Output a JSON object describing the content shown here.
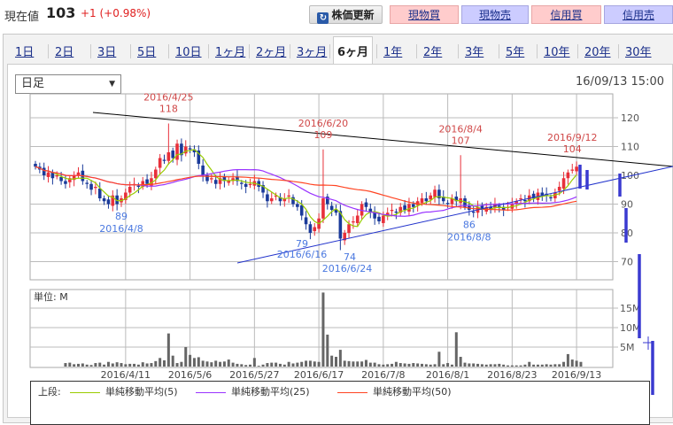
{
  "header": {
    "price_label": "現在値",
    "price": "103",
    "change": "+1 (+0.98%)",
    "refresh_label": "株価更新",
    "buttons": [
      {
        "label": "現物買",
        "kind": "buy"
      },
      {
        "label": "現物売",
        "kind": "sell"
      },
      {
        "label": "信用買",
        "kind": "buy"
      },
      {
        "label": "信用売",
        "kind": "sell"
      }
    ]
  },
  "tabs": [
    "1日",
    "2日",
    "3日",
    "5日",
    "10日",
    "1ヶ月",
    "2ヶ月",
    "3ヶ月",
    "6ヶ月",
    "1年",
    "2年",
    "3年",
    "5年",
    "10年",
    "20年",
    "30年"
  ],
  "active_tab": "6ヶ月",
  "period_select": {
    "value": "日足"
  },
  "timestamp": "16/09/13 15:00",
  "legend": {
    "upper_label": "上段:",
    "items": [
      {
        "label": "単純移動平均(5)",
        "color": "#99cc00"
      },
      {
        "label": "単純移動平均(25)",
        "color": "#9933ff"
      },
      {
        "label": "単純移動平均(50)",
        "color": "#ff4422"
      }
    ]
  },
  "chart_data": [
    {
      "type": "candlestick",
      "y_ticks": [
        70,
        80,
        90,
        100,
        110,
        120
      ],
      "x_tick_labels": [
        "2016/4/11",
        "2016/5/6",
        "2016/5/27",
        "2016/6/17",
        "2016/7/8",
        "2016/8/1",
        "2016/8/23",
        "2016/9/13"
      ],
      "x_tick_index": [
        21,
        36,
        51,
        66,
        81,
        96,
        111,
        126
      ],
      "close": [
        103,
        102,
        100,
        101,
        99,
        100,
        98,
        97,
        99,
        100,
        101,
        98,
        97,
        95,
        96,
        92,
        91,
        90,
        93,
        90,
        92,
        94,
        96,
        97,
        96,
        98,
        97,
        99,
        102,
        106,
        105,
        108,
        106,
        111,
        107,
        110,
        109,
        108,
        104,
        100,
        98,
        99,
        97,
        99,
        98,
        98,
        99,
        98,
        97,
        96,
        97,
        98,
        96,
        94,
        91,
        92,
        93,
        91,
        92,
        93,
        90,
        89,
        86,
        83,
        80,
        82,
        85,
        92,
        90,
        88,
        87,
        78,
        80,
        83,
        84,
        86,
        90,
        89,
        87,
        85,
        84,
        86,
        87,
        88,
        87,
        89,
        88,
        90,
        89,
        91,
        92,
        91,
        93,
        95,
        92,
        91,
        90,
        92,
        91,
        92,
        89,
        88,
        87,
        89,
        88,
        89,
        88,
        90,
        89,
        88,
        89,
        90,
        91,
        92,
        91,
        93,
        92,
        94,
        93,
        93,
        92,
        94,
        96,
        99,
        101,
        102,
        103
      ],
      "annotations": [
        {
          "kind": "high",
          "date": "2016/4/25",
          "value": 118,
          "index": 31
        },
        {
          "kind": "high",
          "date": "2016/6/20",
          "value": 109,
          "index": 67
        },
        {
          "kind": "high",
          "date": "2016/8/4",
          "value": 107,
          "index": 99
        },
        {
          "kind": "high",
          "date": "2016/9/12",
          "value": 104,
          "index": 125
        },
        {
          "kind": "low",
          "date": "2016/4/8",
          "value": 89,
          "index": 20
        },
        {
          "kind": "low",
          "date": "2016/6/16",
          "value": 79,
          "index": 65
        },
        {
          "kind": "low",
          "date": "2016/6/24",
          "value": 74,
          "index": 71
        },
        {
          "kind": "low",
          "date": "2016/8/8",
          "value": 86,
          "index": 101
        }
      ],
      "moving_averages": [
        5,
        25,
        50
      ]
    },
    {
      "type": "bar",
      "unit_label": "単位: M",
      "y_ticks": [
        "5M",
        "10M",
        "15M"
      ],
      "y_tick_values": [
        5,
        10,
        15
      ],
      "values": [
        0,
        0,
        0,
        0,
        0,
        0,
        0,
        0.9,
        1.0,
        0.6,
        0.7,
        0.8,
        0.5,
        0.4,
        0.9,
        1.0,
        0.5,
        1.2,
        0.8,
        1.1,
        0.9,
        0.6,
        0.7,
        0.7,
        0.5,
        1.1,
        0.8,
        0.9,
        1.4,
        2.2,
        1.6,
        8.5,
        2.8,
        0.9,
        1.2,
        5.0,
        3.0,
        2.2,
        2.4,
        1.5,
        1.3,
        1.1,
        1.5,
        1.2,
        1.3,
        1.8,
        1.0,
        0.7,
        0.6,
        0.4,
        0.5,
        2.2,
        0.2,
        0.5,
        0.9,
        1.0,
        1.0,
        0.7,
        0.5,
        1.2,
        0.8,
        1.0,
        1.2,
        1.5,
        1.5,
        1.3,
        1.2,
        19.0,
        8.2,
        2.8,
        2.5,
        4.3,
        1.5,
        1.4,
        1.3,
        1.3,
        1.3,
        1.7,
        1.0,
        1.0,
        0.6,
        0.5,
        0.6,
        0.7,
        1.2,
        0.9,
        0.8,
        0.7,
        0.9,
        0.8,
        0.7,
        0.6,
        0.5,
        0.6,
        3.8,
        0.6,
        0.9,
        0.5,
        8.8,
        2.5,
        1.0,
        0.8,
        0.8,
        0.7,
        0.6,
        0.5,
        0.6,
        0.6,
        0.7,
        0.5,
        0.3,
        0.3,
        0.3,
        0.3,
        0.5,
        1.2,
        0.5,
        0.5,
        0.5,
        0.6,
        0.5,
        0.6,
        0.6,
        1.2,
        3.2,
        1.8,
        1.5,
        1.2
      ]
    }
  ]
}
